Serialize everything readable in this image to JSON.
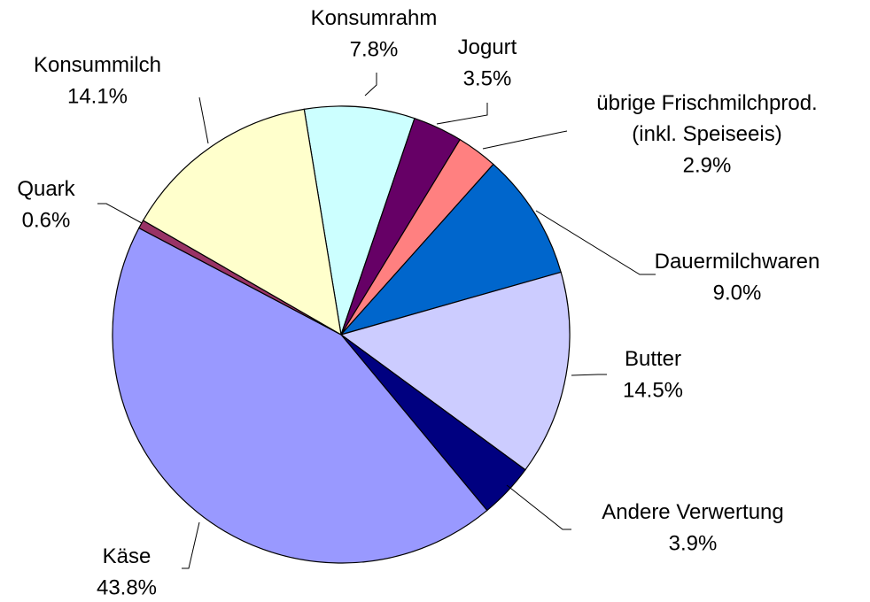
{
  "chart_data": {
    "type": "pie",
    "categories": [
      "Konsumrahm",
      "Jogurt",
      "übrige Frischmilchprod.\n(inkl. Speiseeis)",
      "Dauermilchwaren",
      "Butter",
      "Andere Verwertung",
      "Käse",
      "Quark",
      "Konsummilch"
    ],
    "values": [
      7.8,
      3.5,
      2.9,
      9.0,
      14.5,
      3.9,
      43.8,
      0.6,
      14.1
    ],
    "value_labels": [
      "7.8%",
      "3.5%",
      "2.9%",
      "9.0%",
      "14.5%",
      "3.9%",
      "43.8%",
      "0.6%",
      "14.1%"
    ],
    "colors": [
      "#ccffff",
      "#660066",
      "#ff8080",
      "#0066cc",
      "#ccccff",
      "#000080",
      "#9999ff",
      "#993366",
      "#ffffcc"
    ]
  }
}
